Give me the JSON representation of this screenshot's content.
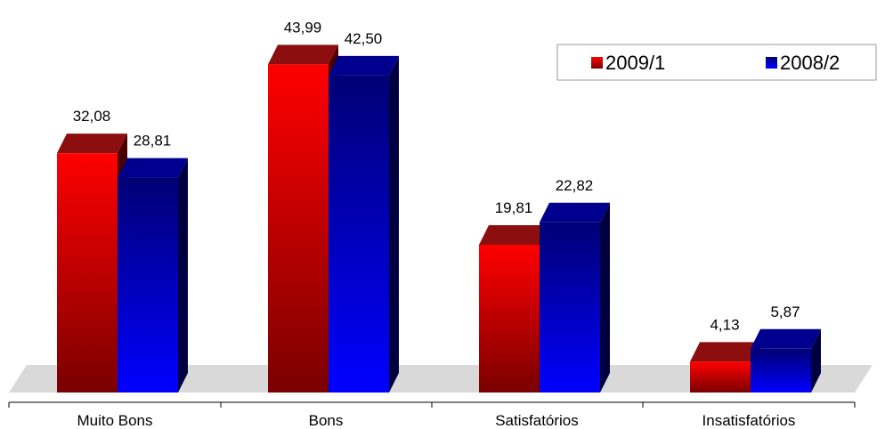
{
  "chart_data": {
    "type": "bar",
    "categories": [
      "Muito Bons",
      "Bons",
      "Satisfatórios",
      "Insatisfatórios"
    ],
    "series": [
      {
        "name": "2009/1",
        "values": [
          32.08,
          43.99,
          19.81,
          4.13
        ],
        "labels": [
          "32,08",
          "43,99",
          "19,81",
          "4,13"
        ],
        "colors": {
          "light": "#ff0000",
          "dark": "#7a0000",
          "top": "#8c0e0e",
          "side": "#4a0000"
        }
      },
      {
        "name": "2008/2",
        "values": [
          28.81,
          42.5,
          22.82,
          5.87
        ],
        "labels": [
          "28,81",
          "42,50",
          "22,82",
          "5,87"
        ],
        "colors": {
          "light": "#0000ff",
          "dark": "#000075",
          "top": "#00008e",
          "side": "#000040"
        }
      }
    ],
    "ylim": [
      0,
      46
    ],
    "grid": false,
    "legend": "top-right",
    "style": "3d-clustered"
  }
}
